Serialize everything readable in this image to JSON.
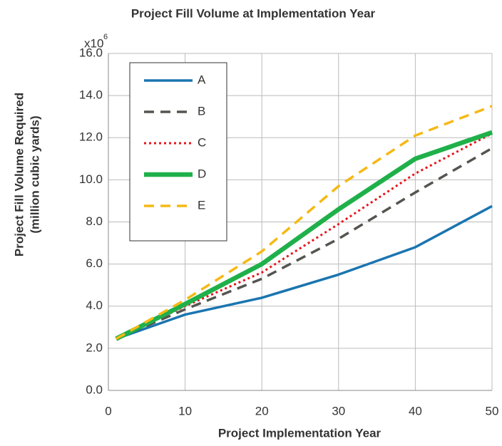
{
  "chart_data": {
    "type": "line",
    "title": "Project Fill Volume at Implementation Year",
    "x_label": "Project Implementation Year",
    "y_label": [
      "Project Fill Volume Required",
      "(million cubic yards)"
    ],
    "y_multiplier": {
      "base": "x10",
      "exponent": "6"
    },
    "x": [
      1,
      10,
      20,
      30,
      40,
      50
    ],
    "series": [
      {
        "name": "A",
        "color": "#1a75b0",
        "style": "solid",
        "values": [
          2.45,
          3.6,
          4.4,
          5.5,
          6.8,
          8.75
        ]
      },
      {
        "name": "B",
        "color": "#555550",
        "style": "dashed",
        "values": [
          2.45,
          3.85,
          5.3,
          7.2,
          9.4,
          11.5
        ]
      },
      {
        "name": "C",
        "color": "#e8141a",
        "style": "dotted",
        "values": [
          2.45,
          4.0,
          5.6,
          7.9,
          10.3,
          12.2
        ]
      },
      {
        "name": "D",
        "color": "#1fb04a",
        "style": "thick",
        "values": [
          2.45,
          4.1,
          6.0,
          8.6,
          11.0,
          12.25
        ]
      },
      {
        "name": "E",
        "color": "#f5b915",
        "style": "dashed",
        "values": [
          2.45,
          4.3,
          6.6,
          9.7,
          12.1,
          13.5
        ]
      }
    ],
    "xlim": [
      0,
      50
    ],
    "xticks": [
      0,
      10,
      20,
      30,
      40,
      50
    ],
    "ylim": [
      0,
      16
    ],
    "yticks": [
      {
        "value": 0,
        "label": "0.0"
      },
      {
        "value": 2,
        "label": "2.0"
      },
      {
        "value": 4,
        "label": "4.0"
      },
      {
        "value": 6,
        "label": "6.0"
      },
      {
        "value": 8,
        "label": "8.0"
      },
      {
        "value": 10,
        "label": "10.0"
      },
      {
        "value": 12,
        "label": "12.0"
      },
      {
        "value": 14,
        "label": "14.0"
      },
      {
        "value": 16,
        "label": "16.0"
      }
    ],
    "grid": true,
    "legend": "upper left"
  }
}
